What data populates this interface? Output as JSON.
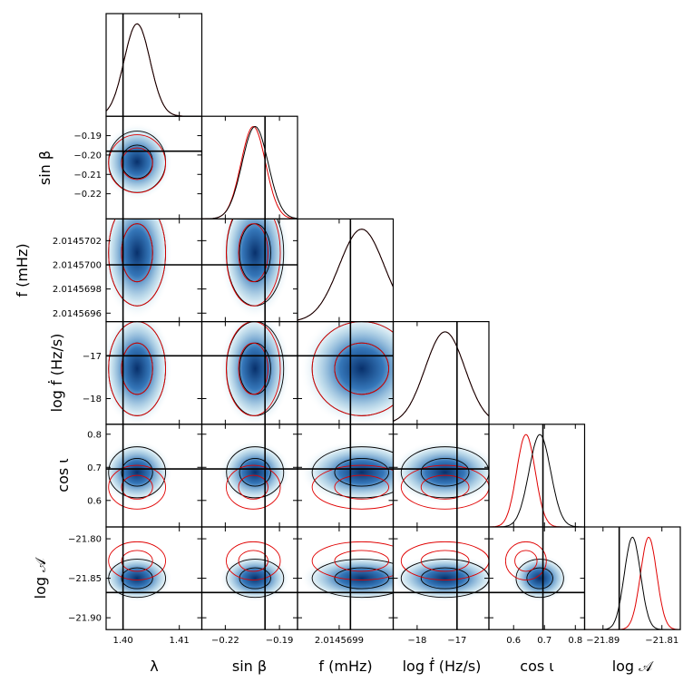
{
  "chart_data": {
    "type": "corner",
    "description_labels": {
      "x": [
        "λ",
        "sin β",
        "f (mHz)",
        "log ḟ (Hz/s)",
        "cos ι",
        "log 𝒜"
      ],
      "y": [
        "sin β",
        "f (mHz)",
        "log ḟ (Hz/s)",
        "cos ι",
        "log 𝒜"
      ]
    },
    "parameters": [
      {
        "name": "lambda",
        "label": "λ",
        "range": [
          1.397,
          1.414
        ],
        "truth": 1.4,
        "ticks": [
          1.4,
          1.41
        ],
        "tick_labels": [
          "1.40",
          "1.41"
        ],
        "series": [
          {
            "name": "black",
            "mean": 1.4025,
            "sd": 0.0023
          },
          {
            "name": "red",
            "mean": 1.4025,
            "sd": 0.0023
          }
        ]
      },
      {
        "name": "sin_beta",
        "label": "sin β",
        "range": [
          -0.233,
          -0.18
        ],
        "truth": -0.198,
        "ticks": [
          -0.22,
          -0.19
        ],
        "tick_labels": [
          "−0.22",
          "−0.19"
        ],
        "yticks": [
          -0.19,
          -0.2,
          -0.21,
          -0.22
        ],
        "ytick_labels": [
          "−0.19",
          "−0.20",
          "−0.21",
          "−0.22"
        ],
        "series": [
          {
            "name": "black",
            "mean": -0.2035,
            "sd": 0.0072
          },
          {
            "name": "red",
            "mean": -0.2045,
            "sd": 0.0068
          }
        ]
      },
      {
        "name": "f",
        "label": "f (mHz)",
        "range": [
          2.01456953,
          2.01457038
        ],
        "truth": 2.01457,
        "ticks": [
          2.0145699
        ],
        "tick_labels": [
          "2.0145699"
        ],
        "yticks": [
          2.0145702,
          2.01457,
          2.0145698,
          2.0145696
        ],
        "ytick_labels": [
          "2.0145702",
          "2.0145700",
          "2.0145698",
          "2.0145696"
        ],
        "series": [
          {
            "name": "black",
            "mean": 2.0145701,
            "sd": 2e-07
          },
          {
            "name": "red",
            "mean": 2.0145701,
            "sd": 2e-07
          }
        ]
      },
      {
        "name": "log_fdot",
        "label": "log ḟ (Hz/s)",
        "range": [
          -18.6,
          -16.2
        ],
        "truth": -17.0,
        "ticks": [
          -18,
          -17
        ],
        "tick_labels": [
          "−18",
          "−17"
        ],
        "yticks": [
          -17,
          -18
        ],
        "ytick_labels": [
          "−17",
          "−18"
        ],
        "series": [
          {
            "name": "black",
            "mean": -17.3,
            "sd": 0.5
          },
          {
            "name": "red",
            "mean": -17.3,
            "sd": 0.5
          }
        ]
      },
      {
        "name": "cos_iota",
        "label": "cos ι",
        "range": [
          0.52,
          0.83
        ],
        "truth": 0.695,
        "ticks": [
          0.6,
          0.7,
          0.8
        ],
        "tick_labels": [
          "0.6",
          "0.7",
          "0.8"
        ],
        "yticks": [
          0.8,
          0.7,
          0.6
        ],
        "ytick_labels": [
          "0.8",
          "0.7",
          "0.6"
        ],
        "series": [
          {
            "name": "black",
            "mean": 0.685,
            "sd": 0.035
          },
          {
            "name": "red",
            "mean": 0.64,
            "sd": 0.03
          }
        ]
      },
      {
        "name": "log_A",
        "label": "log 𝒜",
        "range": [
          -21.915,
          -21.785
        ],
        "truth": -21.868,
        "ticks": [
          -21.89,
          -21.81
        ],
        "tick_labels": [
          "−21.89",
          "−21.81"
        ],
        "yticks": [
          -21.8,
          -21.85,
          -21.9
        ],
        "ytick_labels": [
          "−21.80",
          "−21.85",
          "−21.90"
        ],
        "series": [
          {
            "name": "black",
            "mean": -21.85,
            "sd": 0.011
          },
          {
            "name": "red",
            "mean": -21.828,
            "sd": 0.011
          }
        ]
      }
    ],
    "colors": {
      "series_black": "#000000",
      "series_red": "#e00000",
      "density_dark": "#08306b",
      "density_light": "#ffffff",
      "truth_line": "#000000"
    }
  }
}
